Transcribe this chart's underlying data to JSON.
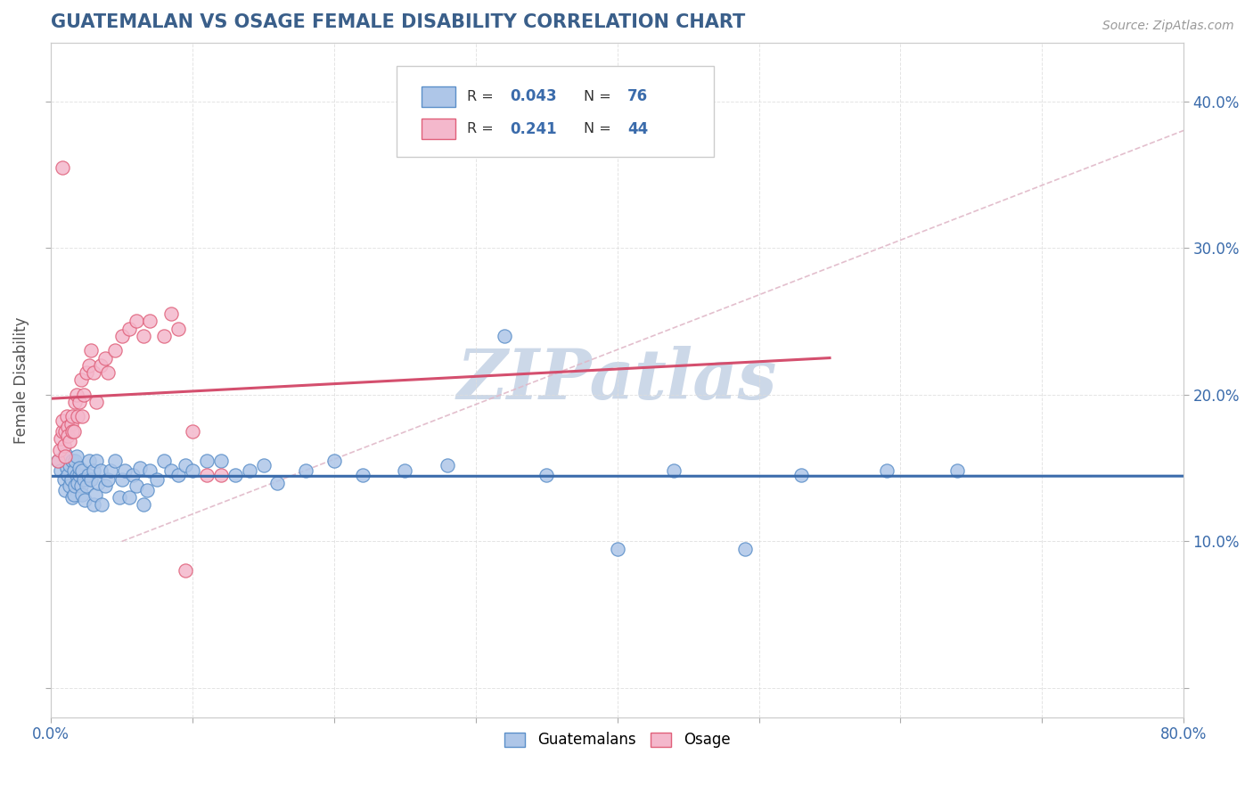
{
  "title": "GUATEMALAN VS OSAGE FEMALE DISABILITY CORRELATION CHART",
  "source": "Source: ZipAtlas.com",
  "ylabel": "Female Disability",
  "xlim": [
    0.0,
    0.8
  ],
  "ylim": [
    -0.02,
    0.44
  ],
  "xticks": [
    0.0,
    0.1,
    0.2,
    0.3,
    0.4,
    0.5,
    0.6,
    0.7,
    0.8
  ],
  "xticklabels": [
    "0.0%",
    "",
    "",
    "",
    "",
    "",
    "",
    "",
    "80.0%"
  ],
  "yticks": [
    0.0,
    0.1,
    0.2,
    0.3,
    0.4
  ],
  "yticklabels_right": [
    "",
    "10.0%",
    "20.0%",
    "30.0%",
    "40.0%"
  ],
  "R_guatemalan": 0.043,
  "N_guatemalan": 76,
  "R_osage": 0.241,
  "N_osage": 44,
  "guatemalan_color": "#aec6e8",
  "osage_color": "#f4b8cc",
  "guatemalan_edge": "#5b8fc9",
  "osage_edge": "#e0607a",
  "trend_guatemalan_color": "#3a6bab",
  "trend_osage_color": "#d44f6e",
  "dashed_color": "#e0b8c8",
  "background_color": "#ffffff",
  "grid_color": "#dddddd",
  "title_color": "#3a5f8a",
  "axis_label_color": "#555555",
  "tick_label_color": "#3a6bab",
  "watermark_color": "#ccd8e8",
  "guatemalan_x": [
    0.005,
    0.007,
    0.009,
    0.01,
    0.01,
    0.011,
    0.012,
    0.013,
    0.013,
    0.014,
    0.015,
    0.015,
    0.016,
    0.016,
    0.017,
    0.017,
    0.018,
    0.018,
    0.019,
    0.02,
    0.02,
    0.021,
    0.022,
    0.022,
    0.023,
    0.024,
    0.025,
    0.026,
    0.027,
    0.028,
    0.03,
    0.03,
    0.031,
    0.032,
    0.033,
    0.035,
    0.036,
    0.038,
    0.04,
    0.042,
    0.045,
    0.048,
    0.05,
    0.052,
    0.055,
    0.058,
    0.06,
    0.063,
    0.065,
    0.068,
    0.07,
    0.075,
    0.08,
    0.085,
    0.09,
    0.095,
    0.1,
    0.11,
    0.12,
    0.13,
    0.14,
    0.15,
    0.16,
    0.18,
    0.2,
    0.22,
    0.25,
    0.28,
    0.32,
    0.35,
    0.4,
    0.44,
    0.49,
    0.53,
    0.59,
    0.64
  ],
  "guatemalan_y": [
    0.155,
    0.148,
    0.142,
    0.16,
    0.135,
    0.15,
    0.145,
    0.138,
    0.152,
    0.142,
    0.13,
    0.155,
    0.148,
    0.132,
    0.155,
    0.138,
    0.145,
    0.158,
    0.14,
    0.145,
    0.15,
    0.138,
    0.132,
    0.148,
    0.142,
    0.128,
    0.138,
    0.145,
    0.155,
    0.142,
    0.148,
    0.125,
    0.132,
    0.155,
    0.14,
    0.148,
    0.125,
    0.138,
    0.142,
    0.148,
    0.155,
    0.13,
    0.142,
    0.148,
    0.13,
    0.145,
    0.138,
    0.15,
    0.125,
    0.135,
    0.148,
    0.142,
    0.155,
    0.148,
    0.145,
    0.152,
    0.148,
    0.155,
    0.155,
    0.145,
    0.148,
    0.152,
    0.14,
    0.148,
    0.155,
    0.145,
    0.148,
    0.152,
    0.24,
    0.145,
    0.095,
    0.148,
    0.095,
    0.145,
    0.148,
    0.148
  ],
  "osage_x": [
    0.005,
    0.006,
    0.007,
    0.008,
    0.008,
    0.009,
    0.01,
    0.01,
    0.011,
    0.012,
    0.012,
    0.013,
    0.014,
    0.015,
    0.015,
    0.016,
    0.017,
    0.018,
    0.019,
    0.02,
    0.021,
    0.022,
    0.023,
    0.025,
    0.027,
    0.028,
    0.03,
    0.032,
    0.035,
    0.038,
    0.04,
    0.045,
    0.05,
    0.055,
    0.06,
    0.065,
    0.07,
    0.08,
    0.085,
    0.09,
    0.095,
    0.1,
    0.11,
    0.12
  ],
  "osage_y": [
    0.155,
    0.162,
    0.17,
    0.175,
    0.182,
    0.165,
    0.158,
    0.175,
    0.185,
    0.178,
    0.172,
    0.168,
    0.18,
    0.175,
    0.185,
    0.175,
    0.195,
    0.2,
    0.185,
    0.195,
    0.21,
    0.185,
    0.2,
    0.215,
    0.22,
    0.23,
    0.215,
    0.195,
    0.22,
    0.225,
    0.215,
    0.23,
    0.24,
    0.245,
    0.25,
    0.24,
    0.25,
    0.24,
    0.255,
    0.245,
    0.08,
    0.175,
    0.145,
    0.145
  ],
  "osage_outlier_x": [
    0.008
  ],
  "osage_outlier_y": [
    0.355
  ]
}
